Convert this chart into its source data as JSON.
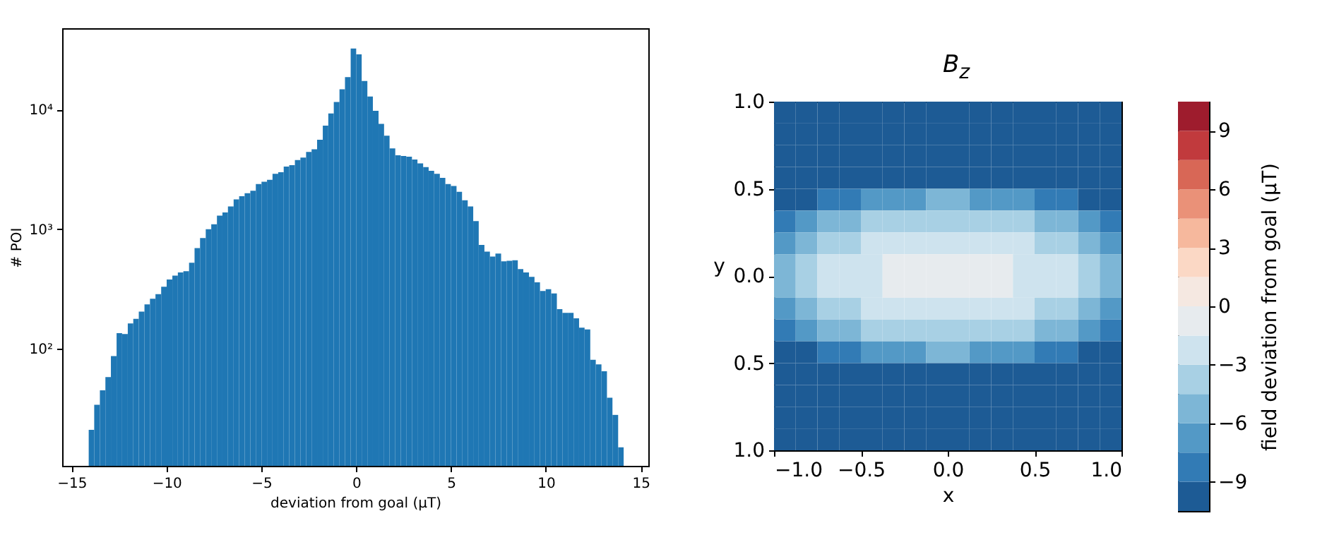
{
  "chart_data": [
    {
      "type": "histogram",
      "xlabel": "deviation from goal (μT)",
      "ylabel": "# POI",
      "color": "#1f77b4",
      "log": "y",
      "bins": [
        -14.1,
        -13.81,
        -13.51,
        -13.22,
        -12.93,
        -12.63,
        -12.34,
        -12.04,
        -11.75,
        -11.46,
        -11.16,
        -10.87,
        -10.58,
        -10.28,
        -9.99,
        -9.69,
        -9.4,
        -9.11,
        -8.81,
        -8.52,
        -8.23,
        -7.93,
        -7.64,
        -7.34,
        -7.05,
        -6.76,
        -6.46,
        -6.17,
        -5.88,
        -5.58,
        -5.29,
        -4.99,
        -4.7,
        -4.41,
        -4.11,
        -3.82,
        -3.53,
        -3.23,
        -2.94,
        -2.64,
        -2.35,
        -2.06,
        -1.76,
        -1.47,
        -1.18,
        -0.88,
        -0.59,
        -0.29,
        0,
        0.29,
        0.59,
        0.88,
        1.18,
        1.47,
        1.76,
        2.06,
        2.35,
        2.64,
        2.94,
        3.23,
        3.53,
        3.82,
        4.11,
        4.41,
        4.7,
        4.99,
        5.29,
        5.58,
        5.88,
        6.17,
        6.46,
        6.76,
        7.05,
        7.34,
        7.64,
        7.93,
        8.23,
        8.52,
        8.81,
        9.11,
        9.4,
        9.69,
        9.99,
        10.28,
        10.58,
        10.87,
        11.16,
        11.46,
        11.75,
        12.04,
        12.34,
        12.63,
        12.93,
        13.22,
        13.51,
        13.81,
        14.1
      ],
      "values": [
        21,
        34,
        45,
        58,
        87,
        135,
        133,
        163,
        178,
        205,
        235,
        262,
        287,
        330,
        380,
        410,
        435,
        445,
        525,
        695,
        845,
        1000,
        1100,
        1300,
        1380,
        1550,
        1780,
        1890,
        2000,
        2100,
        2390,
        2500,
        2590,
        2910,
        3000,
        3340,
        3440,
        3790,
        3970,
        4430,
        4670,
        5600,
        7350,
        9300,
        11600,
        14800,
        18700,
        32500,
        29000,
        17400,
        12900,
        9800,
        7600,
        6050,
        4750,
        4150,
        4100,
        4050,
        3830,
        3560,
        3310,
        3080,
        2910,
        2690,
        2390,
        2300,
        2060,
        1750,
        1550,
        1170,
        740,
        650,
        590,
        625,
        540,
        545,
        550,
        465,
        435,
        400,
        360,
        305,
        315,
        290,
        215,
        200,
        200,
        180,
        150,
        145,
        81,
        74,
        65,
        39,
        28,
        15
      ],
      "xlim": [
        -15.5,
        15.4
      ],
      "ylim": [
        10.5,
        48000
      ],
      "xticks": [
        {
          "value": -15,
          "label": "−15"
        },
        {
          "value": -10,
          "label": "−10"
        },
        {
          "value": -5,
          "label": "−5"
        },
        0,
        5,
        10,
        15
      ],
      "yticks": [
        {
          "value": 100,
          "label": "10²"
        },
        {
          "value": 1000,
          "label": "10³"
        },
        {
          "value": 10000,
          "label": "10⁴"
        }
      ]
    },
    {
      "type": "heatmap",
      "title": "B$_{z}$",
      "xlabel": "x",
      "ylabel": "y",
      "clabel": "field deviation from goal (μT)",
      "xlim": [
        -1,
        1
      ],
      "ylim": [
        -1,
        1
      ],
      "xticks": [
        {
          "value": -1,
          "label": "−1.0"
        },
        {
          "value": -0.5,
          "label": "−0.5"
        },
        {
          "value": 0,
          "label": "0.0"
        },
        {
          "value": 0.5,
          "label": "0.5"
        },
        {
          "value": 1,
          "label": "1.0"
        }
      ],
      "yticks": [
        {
          "value": -1,
          "label": "1.0"
        },
        {
          "value": -0.5,
          "label": "0.5"
        },
        {
          "value": 0,
          "label": "0.0"
        },
        {
          "value": 0.5,
          "label": "0.5"
        },
        {
          "value": 1,
          "label": "1.0"
        }
      ],
      "clim": [
        -10.5,
        10.5
      ],
      "cticks": [
        {
          "value": -9,
          "label": "−9"
        },
        {
          "value": -6,
          "label": "−6"
        },
        {
          "value": -3,
          "label": "−3"
        },
        0,
        3,
        6,
        9
      ],
      "cells": [
        [
          -10.5,
          -10.5,
          -10.5,
          -10.5,
          -10.5,
          -10.5,
          -10.5,
          -10.5,
          -10.5,
          -10.5,
          -10.5,
          -10.5,
          -10.5,
          -10.5,
          -10.5,
          -10.5
        ],
        [
          -10.5,
          -10.5,
          -10.5,
          -10.5,
          -10.5,
          -10.5,
          -10.5,
          -10.5,
          -10.5,
          -10.5,
          -10.5,
          -10.5,
          -10.5,
          -10.5,
          -10.5,
          -10.5
        ],
        [
          -10.5,
          -10.5,
          -10.5,
          -10.5,
          -10.5,
          -10.5,
          -10.5,
          -10.5,
          -10.5,
          -10.5,
          -10.5,
          -10.5,
          -10.5,
          -10.5,
          -10.5,
          -10.5
        ],
        [
          -10.5,
          -10.5,
          -10.5,
          -10.5,
          -10.5,
          -10,
          -9.8,
          -9.7,
          -9.7,
          -9.8,
          -10,
          -10.5,
          -10.5,
          -10.5,
          -10.5,
          -10.5
        ],
        [
          -10.5,
          -9.4,
          -8.2,
          -7.6,
          -7,
          -6.3,
          -6.1,
          -6,
          -6,
          -6.1,
          -6.3,
          -7,
          -7.6,
          -8.2,
          -9.4,
          -10.5
        ],
        [
          -8.3,
          -6.7,
          -5.5,
          -4.9,
          -4.3,
          -3.6,
          -3.4,
          -3.3,
          -3.3,
          -3.4,
          -3.6,
          -4.3,
          -4.9,
          -5.5,
          -6.7,
          -8.3
        ],
        [
          -6.7,
          -5.1,
          -3.9,
          -3.3,
          -2.7,
          -2,
          -1.8,
          -1.7,
          -1.7,
          -1.8,
          -2,
          -2.7,
          -3.3,
          -3.9,
          -5.1,
          -6.7
        ],
        [
          -5.7,
          -4.1,
          -2.9,
          -2.3,
          -1.7,
          -1,
          -0.8,
          -0.7,
          -0.7,
          -0.8,
          -1,
          -1.7,
          -2.3,
          -2.9,
          -4.1,
          -5.7
        ],
        [
          -5.7,
          -4.1,
          -2.9,
          -2.3,
          -1.7,
          -1,
          -0.8,
          -0.7,
          -0.7,
          -0.8,
          -1,
          -1.7,
          -2.3,
          -2.9,
          -4.1,
          -5.7
        ],
        [
          -6.7,
          -5.1,
          -3.9,
          -3.3,
          -2.7,
          -2,
          -1.8,
          -1.7,
          -1.7,
          -1.8,
          -2,
          -2.7,
          -3.3,
          -3.9,
          -5.1,
          -6.7
        ],
        [
          -8.3,
          -6.7,
          -5.5,
          -4.9,
          -4.3,
          -3.6,
          -3.4,
          -3.3,
          -3.3,
          -3.4,
          -3.6,
          -4.3,
          -4.9,
          -5.5,
          -6.7,
          -8.3
        ],
        [
          -10.5,
          -9.4,
          -8.2,
          -7.6,
          -7,
          -6.3,
          -6.1,
          -6,
          -6,
          -6.1,
          -6.3,
          -7,
          -7.6,
          -8.2,
          -9.4,
          -10.5
        ],
        [
          -10.5,
          -10.5,
          -10.5,
          -10.5,
          -10.5,
          -10,
          -9.8,
          -9.7,
          -9.7,
          -9.8,
          -10,
          -10.5,
          -10.5,
          -10.5,
          -10.5,
          -10.5
        ],
        [
          -10.5,
          -10.5,
          -10.5,
          -10.5,
          -10.5,
          -10.5,
          -10.5,
          -10.5,
          -10.5,
          -10.5,
          -10.5,
          -10.5,
          -10.5,
          -10.5,
          -10.5,
          -10.5
        ],
        [
          -10.5,
          -10.5,
          -10.5,
          -10.5,
          -10.5,
          -10.5,
          -10.5,
          -10.5,
          -10.5,
          -10.5,
          -10.5,
          -10.5,
          -10.5,
          -10.5,
          -10.5,
          -10.5
        ],
        [
          -10.5,
          -10.5,
          -10.5,
          -10.5,
          -10.5,
          -10.5,
          -10.5,
          -10.5,
          -10.5,
          -10.5,
          -10.5,
          -10.5,
          -10.5,
          -10.5,
          -10.5,
          -10.5
        ]
      ]
    }
  ]
}
